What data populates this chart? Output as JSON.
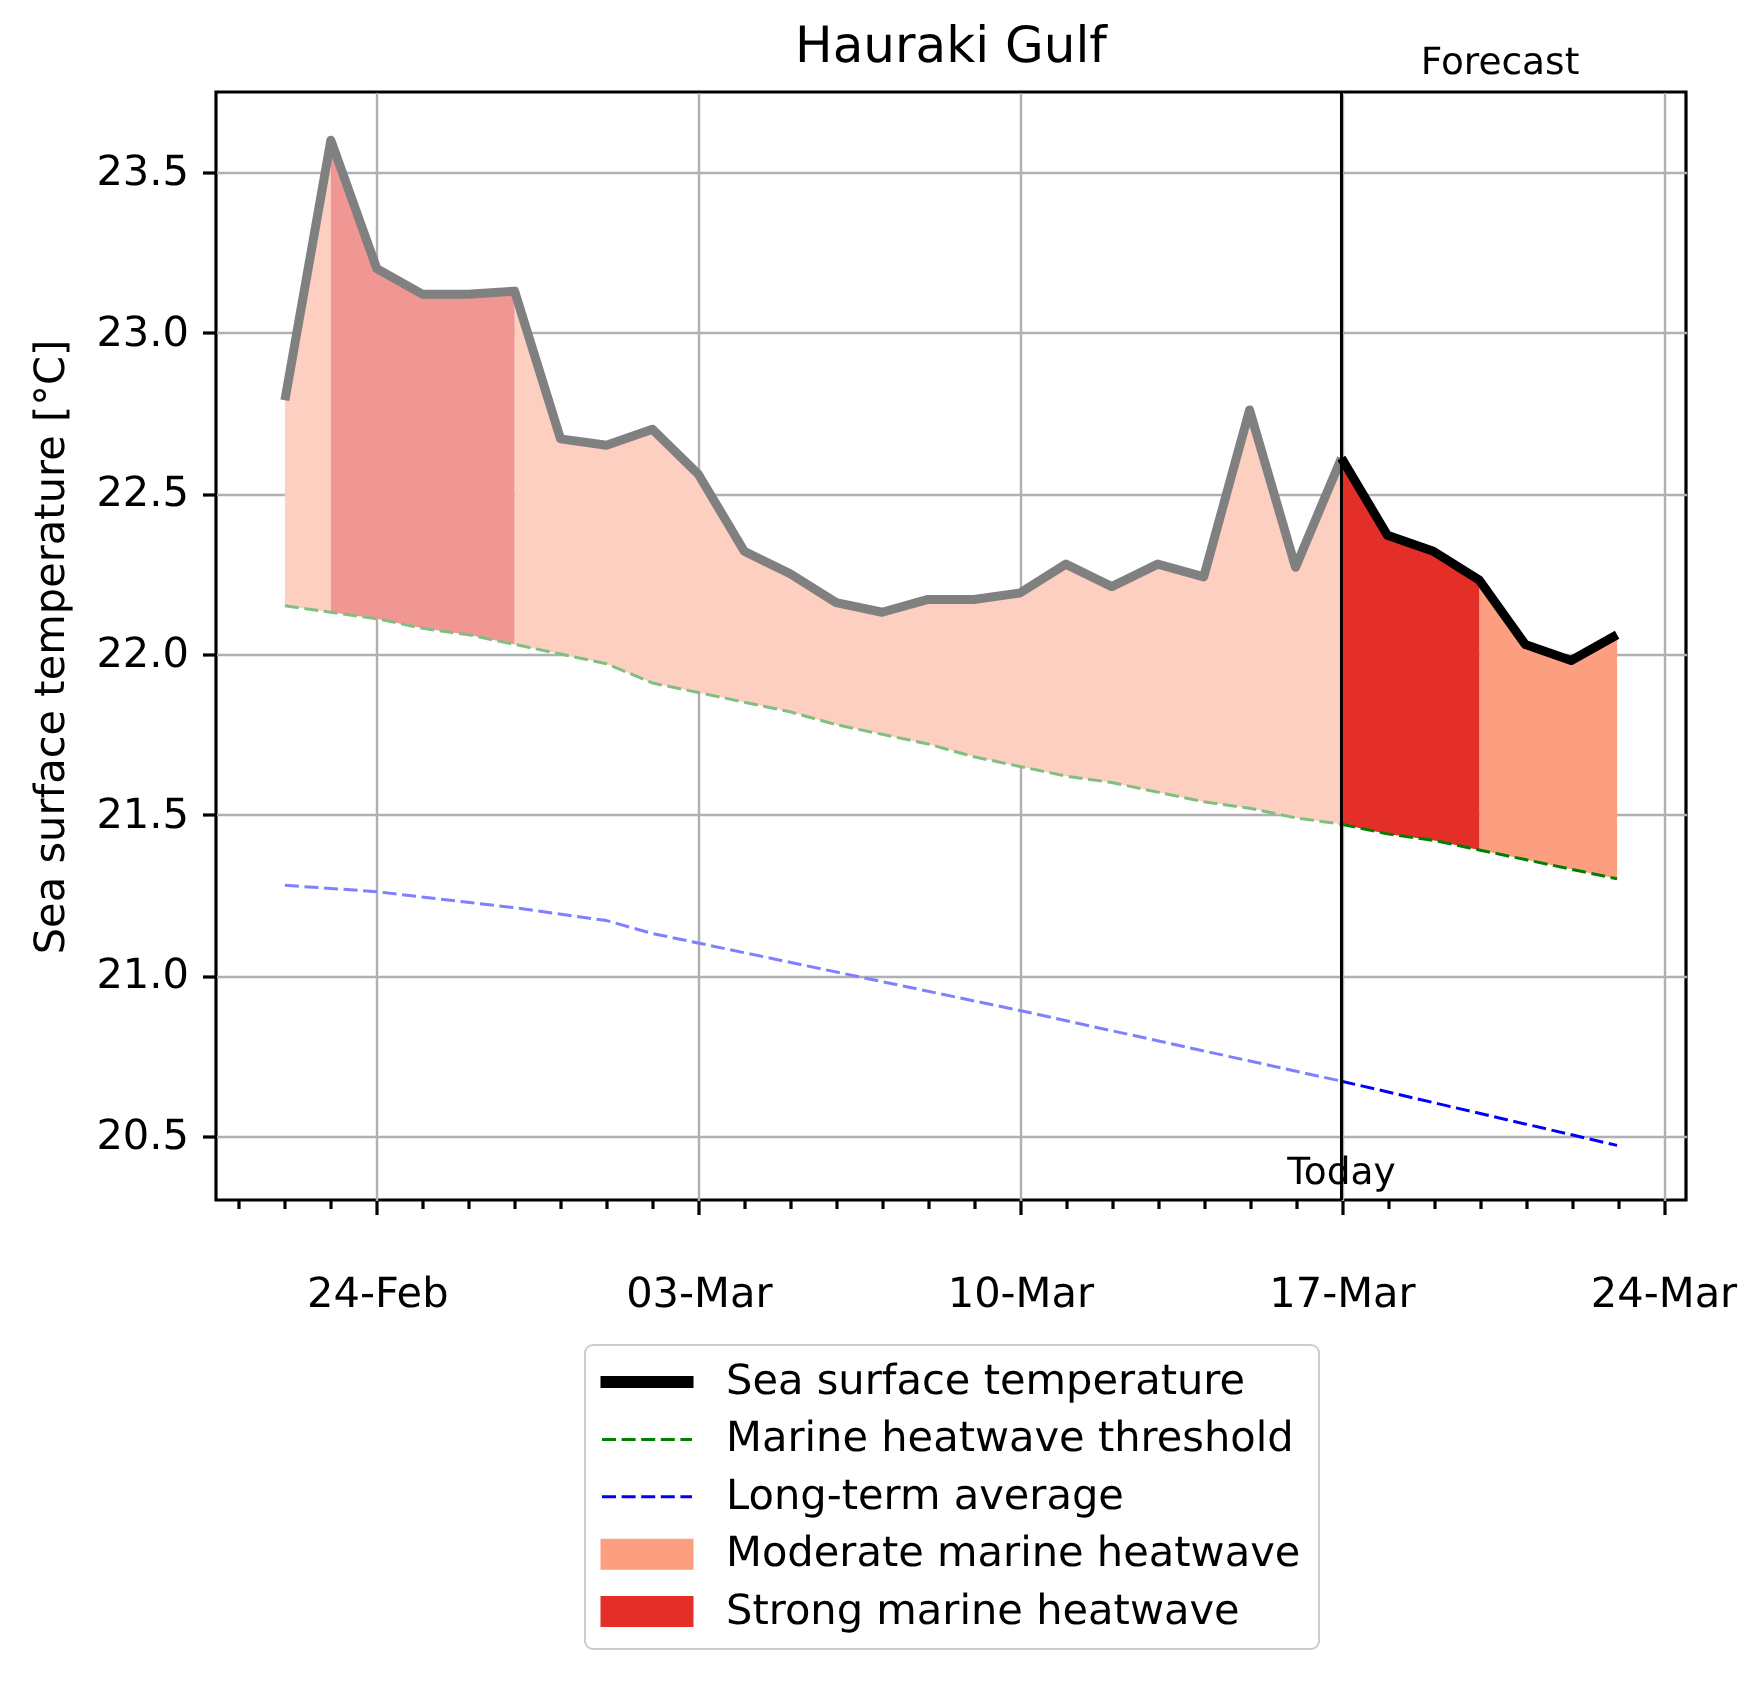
{
  "chart_data": {
    "type": "line",
    "title": "Hauraki Gulf",
    "ylabel": "Sea surface temperature [°C]",
    "annotations": [
      "Forecast"
    ],
    "xlim": [
      "--02-20T12:00",
      "--03-24T12:00"
    ],
    "ylim": [
      20.3,
      23.75
    ],
    "xticks": [
      {
        "value": "--02-21",
        "label": null
      },
      {
        "value": "--02-22",
        "label": null
      },
      {
        "value": "--02-23",
        "label": null
      },
      {
        "value": "--02-24",
        "label": "24-Feb"
      },
      {
        "value": "--02-25",
        "label": null
      },
      {
        "value": "--02-26",
        "label": null
      },
      {
        "value": "--02-27",
        "label": null
      },
      {
        "value": "--02-28",
        "label": null
      },
      {
        "value": "--03-01",
        "label": null
      },
      {
        "value": "--03-02",
        "label": null
      },
      {
        "value": "--03-03",
        "label": "03-Mar"
      },
      {
        "value": "--03-04",
        "label": null
      },
      {
        "value": "--03-05",
        "label": null
      },
      {
        "value": "--03-06",
        "label": null
      },
      {
        "value": "--03-07",
        "label": null
      },
      {
        "value": "--03-08",
        "label": null
      },
      {
        "value": "--03-09",
        "label": null
      },
      {
        "value": "--03-10",
        "label": "10-Mar"
      },
      {
        "value": "--03-11",
        "label": null
      },
      {
        "value": "--03-12",
        "label": null
      },
      {
        "value": "--03-13",
        "label": null
      },
      {
        "value": "--03-14",
        "label": null
      },
      {
        "value": "--03-15",
        "label": null
      },
      {
        "value": "--03-16",
        "label": null
      },
      {
        "value": "--03-17",
        "label": "17-Mar"
      },
      {
        "value": "--03-18",
        "label": null
      },
      {
        "value": "--03-19",
        "label": null
      },
      {
        "value": "--03-20",
        "label": null
      },
      {
        "value": "--03-21",
        "label": null
      },
      {
        "value": "--03-22",
        "label": null
      },
      {
        "value": "--03-23",
        "label": null
      },
      {
        "value": "--03-24",
        "label": "24-Mar"
      }
    ],
    "yticks": [
      20.5,
      {
        "value": 21,
        "label": "21.0"
      },
      21.5,
      {
        "value": 22,
        "label": "22.0"
      },
      22.5,
      {
        "value": 23,
        "label": "23.0"
      },
      23.5
    ],
    "grid": true,
    "legend": "bottom",
    "ref_lines": [
      {
        "axis": "x",
        "value": "--03-17",
        "label": "Today",
        "color": "#000000"
      }
    ],
    "series": [
      {
        "type": "line",
        "color": "#808080",
        "x": [
          "--02-22",
          "--02-23",
          "--02-24",
          "--02-25",
          "--02-26",
          "--02-27",
          "--02-28",
          "--03-01",
          "--03-02",
          "--03-03",
          "--03-04",
          "--03-05",
          "--03-06",
          "--03-07",
          "--03-08",
          "--03-09",
          "--03-10",
          "--03-11",
          "--03-12",
          "--03-13",
          "--03-14",
          "--03-15",
          "--03-16",
          "--03-17"
        ],
        "values": [
          22.79,
          23.6,
          23.2,
          23.12,
          23.12,
          23.13,
          22.67,
          22.65,
          22.7,
          22.56,
          22.32,
          22.25,
          22.16,
          22.13,
          22.17,
          22.17,
          22.19,
          22.28,
          22.21,
          22.28,
          22.24,
          22.76,
          22.27,
          22.61
        ]
      },
      {
        "type": "line",
        "name": "Sea surface temperature",
        "color": "#000000",
        "x": [
          "--03-17",
          "--03-18",
          "--03-19",
          "--03-20",
          "--03-21",
          "--03-22",
          "--03-23"
        ],
        "values": [
          22.61,
          22.37,
          22.32,
          22.23,
          22.03,
          21.98,
          22.06
        ]
      },
      {
        "type": "line",
        "color": "#7fbf7f",
        "line_style": "dashed",
        "x": [
          "--02-22",
          "--02-23",
          "--02-24",
          "--02-25",
          "--02-26",
          "--02-27",
          "--02-28",
          "--03-01",
          "--03-02",
          "--03-03",
          "--03-04",
          "--03-05",
          "--03-06",
          "--03-07",
          "--03-08",
          "--03-09",
          "--03-10",
          "--03-11",
          "--03-12",
          "--03-13",
          "--03-14",
          "--03-15",
          "--03-16",
          "--03-17"
        ],
        "values": [
          22.15,
          22.13,
          22.11,
          22.08,
          22.06,
          22.03,
          22.0,
          21.97,
          21.91,
          21.88,
          21.85,
          21.82,
          21.78,
          21.75,
          21.72,
          21.68,
          21.65,
          21.62,
          21.6,
          21.57,
          21.54,
          21.52,
          21.49,
          21.47
        ]
      },
      {
        "type": "line",
        "name": "Marine heatwave threshold",
        "color": "#008000",
        "line_style": "dashed",
        "x": [
          "--03-17",
          "--03-18",
          "--03-19",
          "--03-20",
          "--03-21",
          "--03-22",
          "--03-23"
        ],
        "values": [
          21.47,
          21.44,
          21.42,
          21.39,
          21.36,
          21.33,
          21.3
        ]
      },
      {
        "type": "line",
        "color": "#7f7fff",
        "line_style": "dashed",
        "x": [
          "--02-22",
          "--02-24",
          "--02-27",
          "--03-01",
          "--03-02",
          "--03-03",
          "--03-10",
          "--03-17"
        ],
        "values": [
          21.28,
          21.26,
          21.21,
          21.17,
          21.13,
          21.1,
          20.89,
          20.67
        ]
      },
      {
        "type": "line",
        "name": "Long-term average",
        "color": "#0000ff",
        "line_style": "dashed",
        "x": [
          "--03-17",
          "--03-23"
        ],
        "values": [
          20.67,
          20.47
        ]
      },
      {
        "type": "area",
        "name": "Moderate marine heatwave",
        "color": "#fc9f81",
        "x": [
          "--03-20",
          "--03-21",
          "--03-22",
          "--03-23"
        ],
        "values": [
          null,
          null,
          null,
          null
        ],
        "lower": [
          21.39,
          21.36,
          21.33,
          21.3
        ],
        "upper": [
          22.23,
          22.03,
          21.98,
          22.06
        ]
      },
      {
        "type": "area",
        "name": "Strong marine heatwave",
        "color": "#e32f27",
        "x": [
          "--03-17",
          "--03-18",
          "--03-19",
          "--03-20"
        ],
        "values": [
          null,
          null,
          null,
          null
        ],
        "lower": [
          21.47,
          21.44,
          21.42,
          21.39
        ],
        "upper": [
          22.61,
          22.37,
          22.32,
          22.23
        ]
      },
      {
        "type": "area",
        "color": "#fdcfc0",
        "x": [
          "--02-22",
          "--02-23",
          "--02-24",
          "--02-25",
          "--02-26",
          "--02-27",
          "--02-28",
          "--03-01",
          "--03-02",
          "--03-03",
          "--03-04",
          "--03-05",
          "--03-06",
          "--03-07",
          "--03-08",
          "--03-09",
          "--03-10",
          "--03-11",
          "--03-12",
          "--03-13",
          "--03-14",
          "--03-15",
          "--03-16",
          "--03-17"
        ],
        "values": [
          null,
          null,
          null,
          null,
          null,
          null,
          null,
          null,
          null,
          null,
          null,
          null,
          null,
          null,
          null,
          null,
          null,
          null,
          null,
          null,
          null,
          null,
          null,
          null
        ],
        "lower": [
          22.15,
          22.13,
          null,
          null,
          null,
          22.03,
          22.0,
          21.97,
          21.91,
          21.88,
          21.85,
          21.82,
          21.78,
          21.75,
          21.72,
          21.68,
          21.65,
          21.62,
          21.6,
          21.57,
          21.54,
          21.52,
          21.49,
          21.47
        ],
        "upper": [
          22.79,
          23.6,
          null,
          null,
          null,
          23.13,
          22.67,
          22.65,
          22.7,
          22.56,
          22.32,
          22.25,
          22.16,
          22.13,
          22.17,
          22.17,
          22.19,
          22.28,
          22.21,
          22.28,
          22.24,
          22.76,
          22.27,
          22.61
        ]
      },
      {
        "type": "area",
        "color": "#f19793",
        "x": [
          "--02-23",
          "--02-24",
          "--02-25",
          "--02-26",
          "--02-27"
        ],
        "values": [
          null,
          null,
          null,
          null,
          null
        ],
        "lower": [
          22.13,
          22.11,
          22.08,
          22.06,
          22.03
        ],
        "upper": [
          23.6,
          23.2,
          23.12,
          23.12,
          23.13
        ]
      }
    ]
  }
}
